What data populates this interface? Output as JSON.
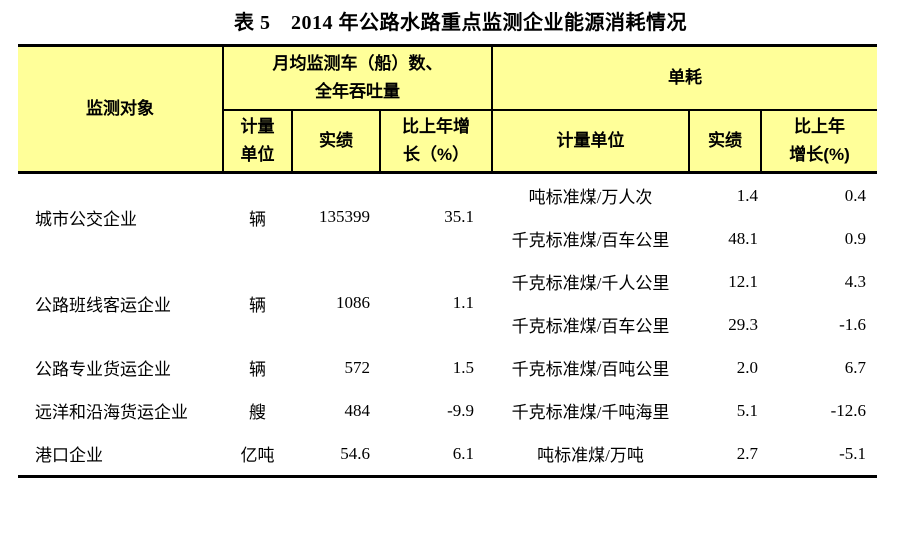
{
  "page": {
    "title": "表 5　2014 年公路水路重点监测企业能源消耗情况"
  },
  "colors": {
    "header_bg": "#ffff99",
    "border": "#000000",
    "text": "#000000",
    "page_bg": "#ffffff"
  },
  "table": {
    "header": {
      "col_object": "监测对象",
      "group_fleet": "月均监测车（船）数、\n全年吞吐量",
      "group_consumption": "单耗",
      "fleet_unit": "计量\n单位",
      "fleet_actual": "实绩",
      "fleet_growth": "比上年增\n长（%）",
      "cons_unit": "计量单位",
      "cons_actual": "实绩",
      "cons_growth": "比上年\n增长(%)"
    },
    "groups": [
      {
        "name": "城市公交企业",
        "unit": "辆",
        "actual": "135399",
        "growth": "35.1",
        "consumption": [
          {
            "unit": "吨标准煤/万人次",
            "actual": "1.4",
            "growth": "0.4"
          },
          {
            "unit": "千克标准煤/百车公里",
            "actual": "48.1",
            "growth": "0.9"
          }
        ]
      },
      {
        "name": "公路班线客运企业",
        "unit": "辆",
        "actual": "1086",
        "growth": "1.1",
        "consumption": [
          {
            "unit": "千克标准煤/千人公里",
            "actual": "12.1",
            "growth": "4.3"
          },
          {
            "unit": "千克标准煤/百车公里",
            "actual": "29.3",
            "growth": "-1.6"
          }
        ]
      },
      {
        "name": "公路专业货运企业",
        "unit": "辆",
        "actual": "572",
        "growth": "1.5",
        "consumption": [
          {
            "unit": "千克标准煤/百吨公里",
            "actual": "2.0",
            "growth": "6.7"
          }
        ]
      },
      {
        "name": "远洋和沿海货运企业",
        "unit": "艘",
        "actual": "484",
        "growth": "-9.9",
        "consumption": [
          {
            "unit": "千克标准煤/千吨海里",
            "actual": "5.1",
            "growth": "-12.6"
          }
        ]
      },
      {
        "name": "港口企业",
        "unit": "亿吨",
        "actual": "54.6",
        "growth": "6.1",
        "consumption": [
          {
            "unit": "吨标准煤/万吨",
            "actual": "2.7",
            "growth": "-5.1"
          }
        ]
      }
    ]
  }
}
